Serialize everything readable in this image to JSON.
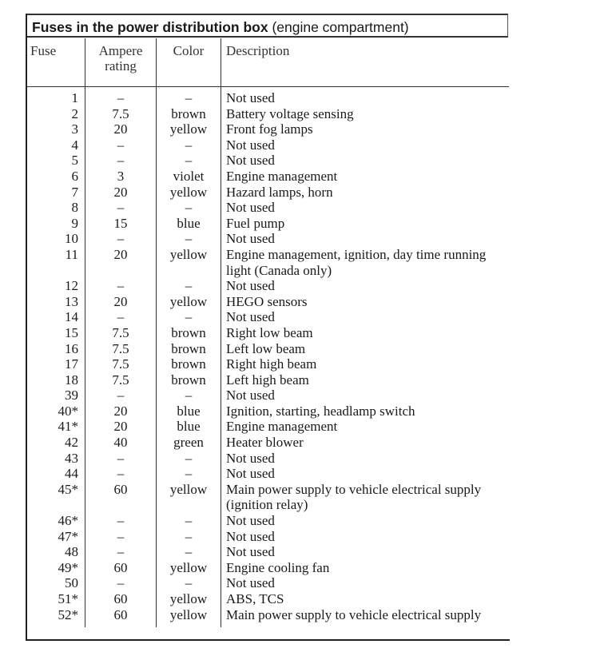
{
  "title_bold": "Fuses in the power distribution box",
  "title_rest": " (engine compartment)",
  "headers": {
    "fuse": "Fuse",
    "ampere": "Ampere rating",
    "color": "Color",
    "description": "Description"
  },
  "rows": [
    [
      "1",
      "–",
      "–",
      "Not used"
    ],
    [
      "2",
      "7.5",
      "brown",
      "Battery voltage sensing"
    ],
    [
      "3",
      "20",
      "yellow",
      "Front fog lamps"
    ],
    [
      "4",
      "–",
      "–",
      "Not used"
    ],
    [
      "5",
      "–",
      "–",
      "Not used"
    ],
    [
      "6",
      "3",
      "violet",
      "Engine management"
    ],
    [
      "7",
      "20",
      "yellow",
      "Hazard lamps, horn"
    ],
    [
      "8",
      "–",
      "–",
      "Not used"
    ],
    [
      "9",
      "15",
      "blue",
      "Fuel pump"
    ],
    [
      "10",
      "–",
      "–",
      "Not used"
    ],
    [
      "11",
      "20",
      "yellow",
      "Engine management, ignition, day time running light (Canada only)"
    ],
    [
      "12",
      "–",
      "–",
      "Not used"
    ],
    [
      "13",
      "20",
      "yellow",
      "HEGO sensors"
    ],
    [
      "14",
      "–",
      "–",
      "Not used"
    ],
    [
      "15",
      "7.5",
      "brown",
      "Right low beam"
    ],
    [
      "16",
      "7.5",
      "brown",
      "Left low beam"
    ],
    [
      "17",
      "7.5",
      "brown",
      "Right high beam"
    ],
    [
      "18",
      "7.5",
      "brown",
      "Left high beam"
    ],
    [
      "39",
      "–",
      "–",
      "Not used"
    ],
    [
      "40*",
      "20",
      "blue",
      "Ignition, starting, headlamp switch"
    ],
    [
      "41*",
      "20",
      "blue",
      "Engine management"
    ],
    [
      "42",
      "40",
      "green",
      "Heater blower"
    ],
    [
      "43",
      "–",
      "–",
      "Not used"
    ],
    [
      "44",
      "–",
      "–",
      "Not used"
    ],
    [
      "45*",
      "60",
      "yellow",
      "Main power supply to vehicle electrical supply (ignition relay)"
    ],
    [
      "46*",
      "–",
      "–",
      "Not used"
    ],
    [
      "47*",
      "–",
      "–",
      "Not used"
    ],
    [
      "48",
      "–",
      "–",
      "Not used"
    ],
    [
      "49*",
      "60",
      "yellow",
      "Engine cooling fan"
    ],
    [
      "50",
      "–",
      "–",
      "Not used"
    ],
    [
      "51*",
      "60",
      "yellow",
      "ABS, TCS"
    ],
    [
      "52*",
      "60",
      "yellow",
      "Main power supply to vehicle electrical supply"
    ]
  ]
}
